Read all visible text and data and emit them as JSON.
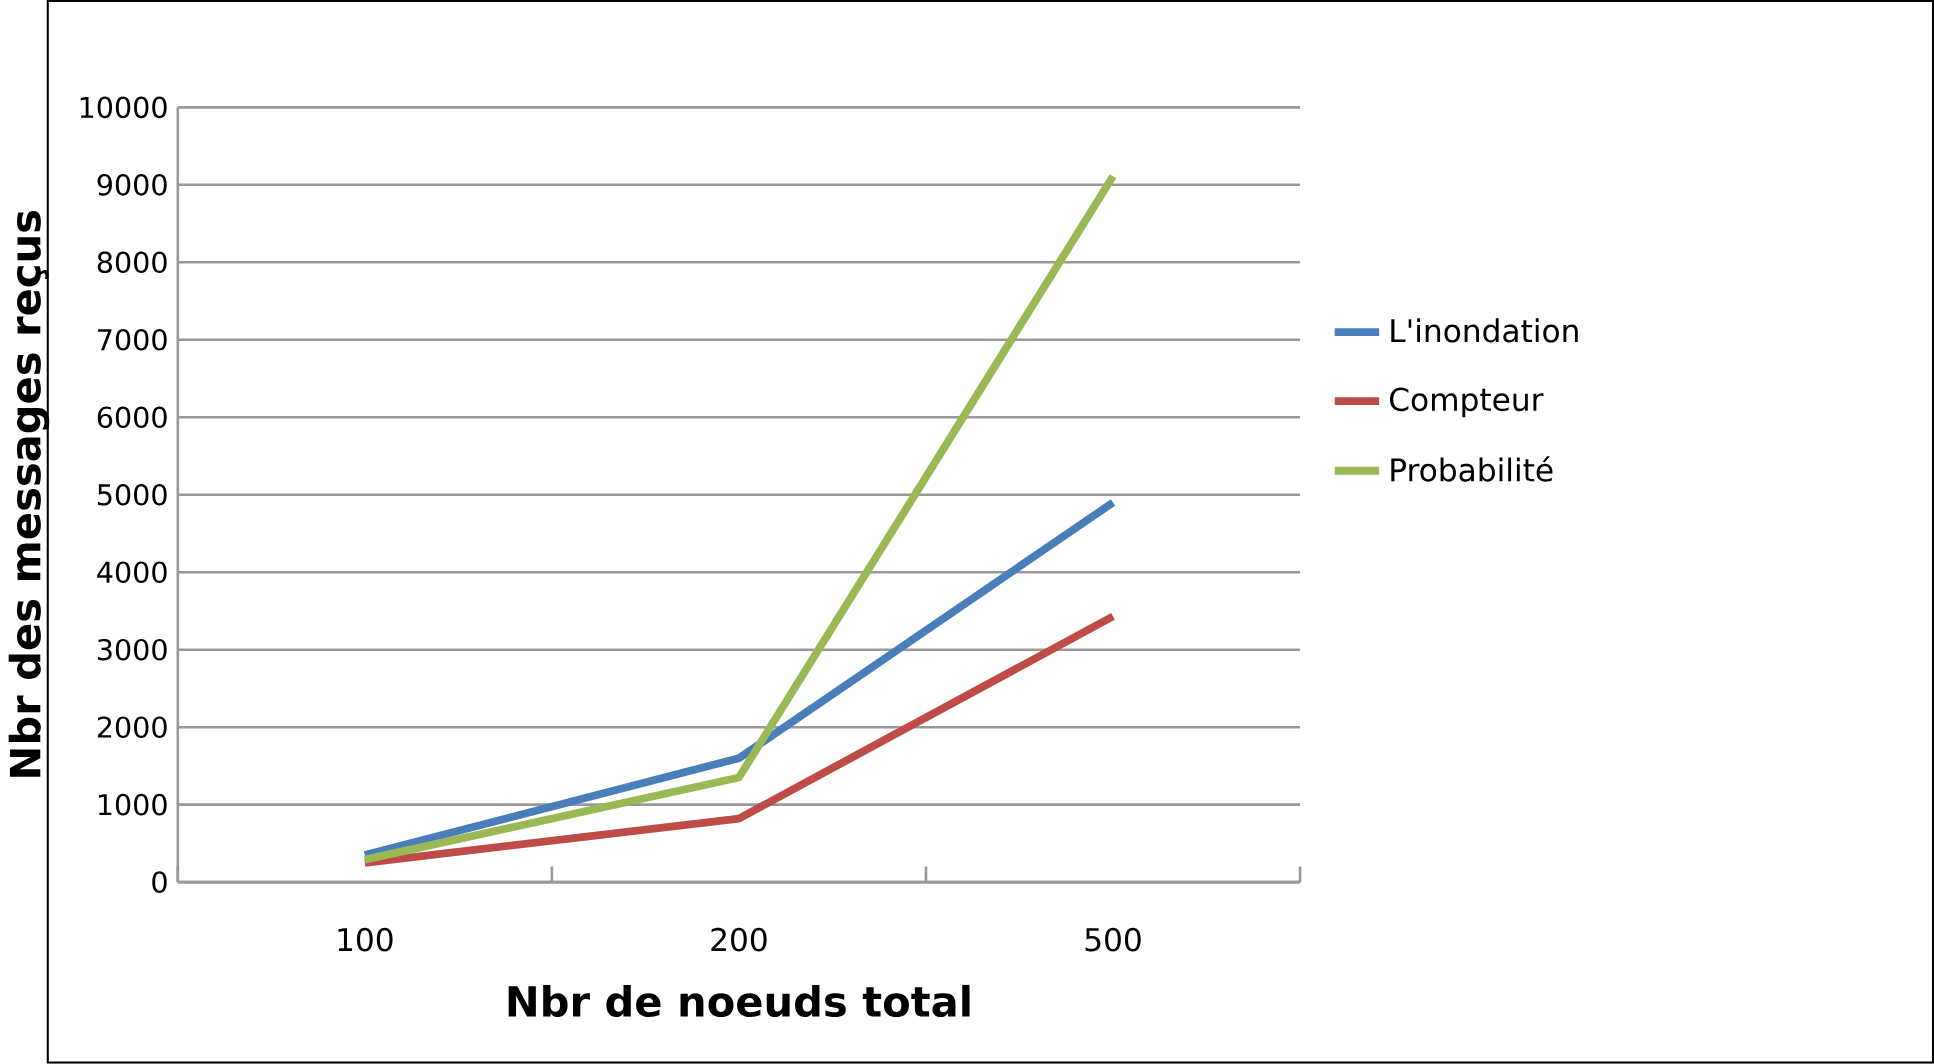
{
  "chart_data": {
    "type": "line",
    "xlabel": "Nbr de noeuds total",
    "ylabel": "Nbr des messages reçus",
    "categories": [
      "100",
      "200",
      "500"
    ],
    "ylim": [
      0,
      10000
    ],
    "yticks": [
      0,
      1000,
      2000,
      3000,
      4000,
      5000,
      6000,
      7000,
      8000,
      9000,
      10000
    ],
    "grid": "y",
    "legend": "right",
    "series": [
      {
        "name": "L'inondation",
        "color": "#4a7ebb",
        "values": [
          350,
          1600,
          4900
        ]
      },
      {
        "name": "Compteur",
        "color": "#be4b48",
        "values": [
          250,
          820,
          3430
        ]
      },
      {
        "name": "Probabilité",
        "color": "#98b954",
        "values": [
          290,
          1350,
          9110
        ]
      }
    ]
  }
}
